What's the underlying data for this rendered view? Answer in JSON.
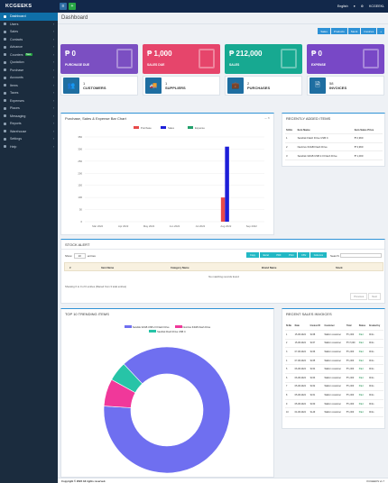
{
  "app": {
    "brand": "KCGEEKS",
    "language": "English",
    "user": "KCGEEKL",
    "page_title": "Dashboard"
  },
  "quick_buttons": [
    "Sales",
    "Products",
    "Stock",
    "Invoices",
    "+"
  ],
  "sidebar": {
    "items": [
      {
        "label": "Dashboard",
        "active": true
      },
      {
        "label": "Users"
      },
      {
        "label": "Sales"
      },
      {
        "label": "Contacts"
      },
      {
        "label": "Advance"
      },
      {
        "label": "Counters",
        "badge": "New"
      },
      {
        "label": "Quotation"
      },
      {
        "label": "Purchase"
      },
      {
        "label": "Accounts"
      },
      {
        "label": "Items"
      },
      {
        "label": "Taxes"
      },
      {
        "label": "Expenses"
      },
      {
        "label": "Places"
      },
      {
        "label": "Messaging"
      },
      {
        "label": "Reports"
      },
      {
        "label": "Warehouse"
      },
      {
        "label": "Settings"
      },
      {
        "label": "Help"
      }
    ]
  },
  "stat_cards": [
    {
      "value": "₱ 0",
      "label": "PURCHASE DUE",
      "color": "#7b4fc2"
    },
    {
      "value": "₱ 1,000",
      "label": "SALES DUE",
      "color": "#e6456b"
    },
    {
      "value": "₱ 212,000",
      "label": "SALES",
      "color": "#17a991"
    },
    {
      "value": "₱ 0",
      "label": "EXPENSE",
      "color": "#7848c6"
    }
  ],
  "count_cards": [
    {
      "value": "1",
      "label": "CUSTOMERS",
      "icon": "users-icon"
    },
    {
      "value": "1",
      "label": "SUPPLIERS",
      "icon": "truck-icon"
    },
    {
      "value": "2",
      "label": "PURCHASES",
      "icon": "briefcase-icon"
    },
    {
      "value": "58",
      "label": "INVOICES",
      "icon": "invoice-icon"
    }
  ],
  "bar_chart": {
    "title": "Purchase, Sales & Expense Bar Chart",
    "legend": [
      "Purchase",
      "Sales",
      "Expense"
    ]
  },
  "chart_data": {
    "type": "bar",
    "categories": [
      "Mar 2022",
      "Apr 2022",
      "May 2022",
      "Jun 2022",
      "Jul 2022",
      "Aug 2022",
      "Sep 2022"
    ],
    "series": [
      {
        "name": "Purchase",
        "values": [
          0,
          0,
          0,
          0,
          0,
          100,
          0
        ],
        "color": "#e84a4a"
      },
      {
        "name": "Sales",
        "values": [
          0,
          0,
          0,
          0,
          0,
          310,
          0
        ],
        "color": "#1d1fd8"
      },
      {
        "name": "Expense",
        "values": [
          0,
          0,
          0,
          0,
          0,
          0,
          0
        ],
        "color": "#22a06b"
      }
    ],
    "yticks": [
      0,
      50,
      100,
      150,
      200,
      250,
      300,
      350
    ],
    "ylim": [
      0,
      350
    ],
    "legend_position": "top",
    "grid": true
  },
  "recent_items": {
    "title": "RECENTLY ADDED ITEMS",
    "headers": [
      "Sl.No",
      "Item Name",
      "Item Sales Price"
    ],
    "rows": [
      [
        "1",
        "Sandisk Flash Drive USB C",
        "₱ 2,960"
      ],
      [
        "2",
        "Nextrive 64GB Flash Drive",
        "₱ 3,960"
      ],
      [
        "3",
        "Sandisk 32GB USB 2.0 Flash Drive",
        "₱ 1,000"
      ]
    ]
  },
  "stock_alert": {
    "title": "STOCK ALERT",
    "show_label": "Show",
    "show_value": "10",
    "entries_label": "entries",
    "export_buttons": [
      "Copy",
      "Excel",
      "PDF",
      "Print",
      "CSV",
      "Columns"
    ],
    "search_label": "Search:",
    "headers": [
      "#",
      "Item Name",
      "Category Name",
      "Brand Name",
      "Stock"
    ],
    "empty_text": "No matching records found",
    "info_text": "Showing 0 to 0 of 0 entries (filtered from 3 total entries)",
    "pager": [
      "Previous",
      "Next"
    ]
  },
  "trending": {
    "title": "TOP 10 TRENDING ITEMS",
    "legend": [
      "Sandisk 32GB USB 2.0 Flash Drive",
      "Nextrive 64GB Flash Drive",
      "Sandisk Flash Drive USB C"
    ],
    "values": [
      88,
      7,
      5
    ],
    "colors": [
      "#6f6ff0",
      "#f0389a",
      "#27c4a7"
    ]
  },
  "recent_sales": {
    "title": "RECENT SALES INVOICES",
    "headers": [
      "Sl.No",
      "Date",
      "Invoice ID",
      "Customer",
      "Total",
      "Status",
      "Created by"
    ],
    "rows": [
      [
        "1",
        "15-08-2022",
        "SL58",
        "Walk-In customer",
        "₱ 1,000",
        "Paid",
        "Chris"
      ],
      [
        "2",
        "15-08-2022",
        "SL57",
        "Walk-In customer",
        "₱ 17,000",
        "Paid",
        "Chris"
      ],
      [
        "3",
        "07-08-2022",
        "SL56",
        "Walk-In customer",
        "₱ 1,000",
        "Paid",
        "Chris"
      ],
      [
        "4",
        "07-08-2022",
        "SL55",
        "Walk-In customer",
        "₱ 1,000",
        "Paid",
        "Chris"
      ],
      [
        "5",
        "06-08-2022",
        "SL54",
        "Walk-In customer",
        "₱ 1,000",
        "Paid",
        "Chris"
      ],
      [
        "6",
        "06-08-2022",
        "SL53",
        "Walk-In customer",
        "₱ 1,000",
        "Paid",
        "Chris"
      ],
      [
        "7",
        "05-08-2022",
        "SL52",
        "Walk-In customer",
        "₱ 1,000",
        "Paid",
        "Chris"
      ],
      [
        "8",
        "05-08-2022",
        "SL51",
        "Walk-In customer",
        "₱ 1,000",
        "Paid",
        "Chris"
      ],
      [
        "9",
        "05-08-2022",
        "SL50",
        "Walk-In customer",
        "₱ 1,000",
        "Paid",
        "Chris"
      ],
      [
        "10",
        "04-08-2022",
        "SL49",
        "Walk-In customer",
        "₱ 1,000",
        "Paid",
        "Chris"
      ]
    ]
  },
  "footer": {
    "copyright": "Copyright © 2022 All rights reserved.",
    "version": "KCGEEKS v1.7"
  }
}
